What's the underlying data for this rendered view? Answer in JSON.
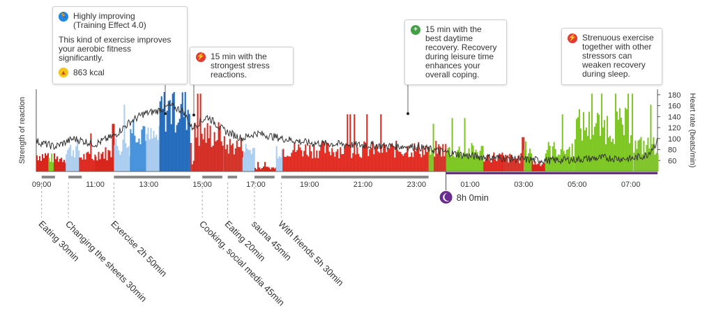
{
  "colors": {
    "stress": "#d9261c",
    "recovery": "#7cc421",
    "exercise_dark": "#1565c0",
    "exercise_mid": "#3f8fe0",
    "exercise_light": "#a9ccef",
    "heart_rate": "#333333",
    "sleep": "#6b2c91",
    "activity_bar": "#8a8a8a",
    "icon_blue": "#1e88e5",
    "icon_red": "#e53935",
    "icon_green": "#43a047"
  },
  "callouts": [
    {
      "id": "exercise",
      "icon": "running-icon",
      "title": "Highly improving\n(Training Effect 4.0)",
      "body": "This kind of exercise improves\nyour aerobic fitness\nsignificantly.",
      "kcal": "863 kcal"
    },
    {
      "id": "stress",
      "icon": "stress-bolt-icon",
      "title": "15 min with the\nstrongest stress\nreactions."
    },
    {
      "id": "recovery",
      "icon": "plus-icon",
      "title": "15 min with the\nbest daytime\nrecovery. Recovery\nduring leisure time\nenhances your\noverall coping."
    },
    {
      "id": "strenuous",
      "icon": "stress-bolt-icon",
      "title": "Strenuous exercise\ntogether with other\nstressors can\nweaken recovery\nduring sleep."
    }
  ],
  "chart_data": {
    "type": "bar",
    "ylabel": "Strength of reaction",
    "y2label": "Heart rate (beats/min)",
    "y2ticks": [
      60,
      80,
      100,
      120,
      140,
      160,
      180
    ],
    "y2lim": [
      40,
      190
    ],
    "x_ticks": [
      "09:00",
      "11:00",
      "13:00",
      "15:00",
      "17:00",
      "19:00",
      "21:00",
      "23:00",
      "01:00",
      "03:00",
      "05:00",
      "07:00"
    ],
    "x_tick_hours": [
      9,
      11,
      13,
      15,
      17,
      19,
      21,
      23,
      25,
      27,
      29,
      31
    ],
    "x_range_hours": [
      8.8,
      32.0
    ],
    "sleep": {
      "start": 24.1,
      "end": 32.0,
      "label": "8h 0min",
      "icon": "moon-icon"
    },
    "activities": [
      {
        "label": "Eating 30min",
        "start": 9.0,
        "end": 9.5
      },
      {
        "label": "Changing the sheets 30min",
        "start": 10.0,
        "end": 10.5
      },
      {
        "label": "Exercise 2h 50min",
        "start": 11.7,
        "end": 14.55
      },
      {
        "label": "Cooking, social media 45min",
        "start": 15.0,
        "end": 15.75
      },
      {
        "label": "Eating 20min",
        "start": 15.95,
        "end": 16.3
      },
      {
        "label": "sauna 45min",
        "start": 16.95,
        "end": 17.7
      },
      {
        "label": "With friends 5h 30min",
        "start": 17.95,
        "end": 23.45
      }
    ],
    "segments": [
      {
        "start": 8.8,
        "end": 9.25,
        "type": "stress",
        "level": 0.22
      },
      {
        "start": 9.25,
        "end": 9.45,
        "type": "recovery",
        "level": 0.18
      },
      {
        "start": 9.45,
        "end": 9.9,
        "type": "stress",
        "level": 0.18
      },
      {
        "start": 9.9,
        "end": 10.4,
        "type": "exercise_light",
        "level": 0.3
      },
      {
        "start": 10.4,
        "end": 11.0,
        "type": "stress",
        "level": 0.2
      },
      {
        "start": 11.0,
        "end": 11.7,
        "type": "stress",
        "level": 0.25
      },
      {
        "start": 11.7,
        "end": 12.3,
        "type": "exercise_light",
        "level": 0.35
      },
      {
        "start": 12.3,
        "end": 12.9,
        "type": "exercise_mid",
        "level": 0.6
      },
      {
        "start": 12.9,
        "end": 13.4,
        "type": "exercise_light",
        "level": 0.45
      },
      {
        "start": 13.4,
        "end": 14.55,
        "type": "exercise_dark",
        "level": 0.85
      },
      {
        "start": 14.55,
        "end": 14.7,
        "type": "stress",
        "level": 0.15
      },
      {
        "start": 14.7,
        "end": 15.8,
        "type": "stress",
        "level": 0.5
      },
      {
        "start": 15.8,
        "end": 16.5,
        "type": "stress",
        "level": 0.35
      },
      {
        "start": 16.5,
        "end": 16.95,
        "type": "exercise_light",
        "level": 0.3
      },
      {
        "start": 16.95,
        "end": 17.75,
        "type": "stress",
        "level": 0.05
      },
      {
        "start": 17.75,
        "end": 18.0,
        "type": "exercise_light",
        "level": 0.3
      },
      {
        "start": 18.0,
        "end": 23.45,
        "type": "stress",
        "level": 0.3
      },
      {
        "start": 23.45,
        "end": 23.65,
        "type": "recovery",
        "level": 0.25
      },
      {
        "start": 23.65,
        "end": 24.1,
        "type": "stress",
        "level": 0.3
      },
      {
        "start": 24.1,
        "end": 25.5,
        "type": "recovery",
        "level": 0.28
      },
      {
        "start": 25.5,
        "end": 26.2,
        "type": "stress",
        "level": 0.2
      },
      {
        "start": 26.2,
        "end": 27.0,
        "type": "stress",
        "level": 0.18
      },
      {
        "start": 27.0,
        "end": 27.3,
        "type": "recovery",
        "level": 0.3
      },
      {
        "start": 27.3,
        "end": 27.8,
        "type": "stress",
        "level": 0.12
      },
      {
        "start": 27.8,
        "end": 28.9,
        "type": "recovery",
        "level": 0.3
      },
      {
        "start": 28.9,
        "end": 31.1,
        "type": "recovery",
        "level": 0.62
      },
      {
        "start": 31.1,
        "end": 32.0,
        "type": "recovery",
        "level": 0.35
      }
    ]
  }
}
